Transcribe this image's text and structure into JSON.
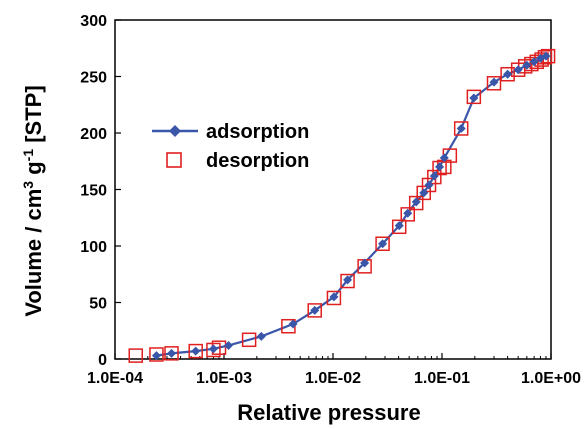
{
  "chart_data": {
    "type": "line",
    "xlabel": "Relative pressure",
    "ylabel_parts": {
      "a": "Volume / cm",
      "sup1": "3",
      "b": " g",
      "sup2": "-1",
      "c": " [STP]"
    },
    "x_scale": "log",
    "xlim": [
      0.0001,
      1.0
    ],
    "ylim": [
      0,
      300
    ],
    "x_ticks": [
      {
        "value": 0.0001,
        "label": "1.0E-04"
      },
      {
        "value": 0.001,
        "label": "1.0E-03"
      },
      {
        "value": 0.01,
        "label": "1.0E-02"
      },
      {
        "value": 0.1,
        "label": "1.0E-01"
      },
      {
        "value": 1.0,
        "label": "1.0E+00"
      }
    ],
    "y_ticks": [
      {
        "value": 0,
        "label": "0"
      },
      {
        "value": 50,
        "label": "50"
      },
      {
        "value": 100,
        "label": "100"
      },
      {
        "value": 150,
        "label": "150"
      },
      {
        "value": 200,
        "label": "200"
      },
      {
        "value": 250,
        "label": "250"
      },
      {
        "value": 300,
        "label": "300"
      }
    ],
    "grid": false,
    "legend_position": "left-middle",
    "series": [
      {
        "name": "adsorption",
        "marker": "filled-diamond",
        "color": "#3a56a8",
        "x": [
          0.00024,
          0.00033,
          0.00055,
          0.0008,
          0.0011,
          0.0022,
          0.0043,
          0.0068,
          0.0102,
          0.0136,
          0.0195,
          0.0285,
          0.0405,
          0.0485,
          0.058,
          0.068,
          0.076,
          0.085,
          0.095,
          0.105,
          0.15,
          0.196,
          0.3,
          0.4,
          0.5,
          0.6,
          0.7,
          0.8,
          0.9
        ],
        "y": [
          3,
          5,
          7,
          9,
          12,
          20,
          31,
          43,
          55,
          70,
          85,
          102,
          118,
          129,
          139,
          147,
          154,
          162,
          170,
          178,
          204,
          231,
          245,
          252,
          256,
          260,
          263,
          266,
          268
        ]
      },
      {
        "name": "desorption",
        "marker": "open-square",
        "color": "#e02020",
        "x": [
          0.000155,
          0.00024,
          0.00033,
          0.00055,
          0.0008,
          0.0009,
          0.0017,
          0.0039,
          0.0068,
          0.0102,
          0.0136,
          0.0195,
          0.0285,
          0.0405,
          0.0485,
          0.058,
          0.068,
          0.076,
          0.085,
          0.095,
          0.105,
          0.118,
          0.15,
          0.196,
          0.3,
          0.4,
          0.5,
          0.58,
          0.66,
          0.74,
          0.82,
          0.88,
          0.94
        ],
        "y": [
          3,
          4,
          5,
          7,
          8,
          10,
          17,
          29,
          43,
          54,
          69,
          82,
          102,
          117,
          128,
          138,
          147,
          154,
          161,
          169,
          170,
          180,
          204,
          232,
          244,
          252,
          256,
          259,
          261,
          263,
          265,
          267,
          268
        ]
      }
    ]
  }
}
